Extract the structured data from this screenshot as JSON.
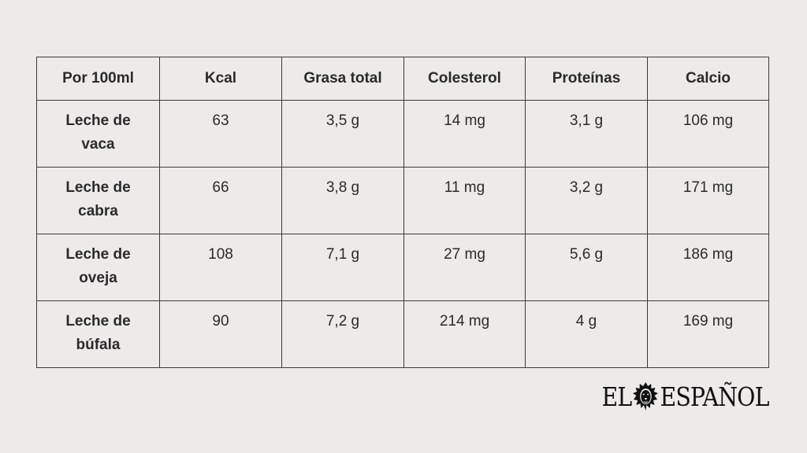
{
  "table": {
    "headers": [
      "Por 100ml",
      "Kcal",
      "Grasa total",
      "Colesterol",
      "Proteínas",
      "Calcio"
    ],
    "rows": [
      {
        "name_line1": "Leche de",
        "name_line2": "vaca",
        "kcal": "63",
        "grasa": "3,5 g",
        "colesterol": "14 mg",
        "proteinas": "3,1 g",
        "calcio": "106 mg"
      },
      {
        "name_line1": "Leche de",
        "name_line2": "cabra",
        "kcal": "66",
        "grasa": "3,8 g",
        "colesterol": "11 mg",
        "proteinas": "3,2 g",
        "calcio": "171 mg"
      },
      {
        "name_line1": "Leche de",
        "name_line2": "oveja",
        "kcal": "108",
        "grasa": "7,1 g",
        "colesterol": "27 mg",
        "proteinas": "5,6 g",
        "calcio": "186 mg"
      },
      {
        "name_line1": "Leche de",
        "name_line2": "búfala",
        "kcal": "90",
        "grasa": "7,2 g",
        "colesterol": "214 mg",
        "proteinas": "4 g",
        "calcio": "169 mg"
      }
    ]
  },
  "logo": {
    "left_text": "EL",
    "right_text": "ESPAÑOL",
    "icon": "lion-icon"
  },
  "colors": {
    "background": "#ecebea",
    "border": "#3a3a3a",
    "text": "#2a2a2a"
  }
}
